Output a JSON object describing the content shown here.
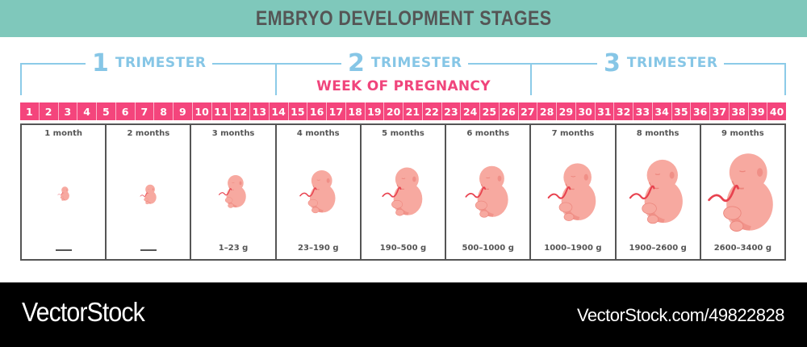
{
  "header": {
    "title": "EMBRYO DEVELOPMENT STAGES",
    "background": "#7fc8bb"
  },
  "trimesters": [
    {
      "number": "1",
      "label": "TRIMESTER",
      "weeks": "1-13"
    },
    {
      "number": "2",
      "label": "TRIMESTER",
      "weeks": "14-27"
    },
    {
      "number": "3",
      "label": "TRIMESTER",
      "weeks": "28-40"
    }
  ],
  "week_title": "WEEK OF PREGNANCY",
  "weeks": [
    "1",
    "2",
    "3",
    "4",
    "5",
    "6",
    "7",
    "8",
    "9",
    "10",
    "11",
    "12",
    "13",
    "14",
    "15",
    "16",
    "17",
    "18",
    "19",
    "20",
    "21",
    "22",
    "23",
    "24",
    "25",
    "26",
    "27",
    "28",
    "29",
    "30",
    "31",
    "32",
    "33",
    "34",
    "35",
    "36",
    "37",
    "38",
    "39",
    "40"
  ],
  "months": [
    {
      "label": "1 month",
      "weight": "",
      "scale": 0.18
    },
    {
      "label": "2 months",
      "weight": "",
      "scale": 0.25
    },
    {
      "label": "3 months",
      "weight": "1–23 g",
      "scale": 0.42
    },
    {
      "label": "4 months",
      "weight": "23–190 g",
      "scale": 0.55
    },
    {
      "label": "5 months",
      "weight": "190–500 g",
      "scale": 0.62
    },
    {
      "label": "6 months",
      "weight": "500–1000 g",
      "scale": 0.66
    },
    {
      "label": "7 months",
      "weight": "1000–1900 g",
      "scale": 0.74
    },
    {
      "label": "8 months",
      "weight": "1900–2600 g",
      "scale": 0.82
    },
    {
      "label": "9 months",
      "weight": "2600–3400 g",
      "scale": 1.0
    }
  ],
  "colors": {
    "trimester": "#86c6e6",
    "week_accent": "#f4457c",
    "embryo_skin": "#f7a9a0",
    "embryo_shadow": "#ec857c",
    "umbilical_cord": "#e8424f",
    "border": "#555555"
  },
  "footer": {
    "brand": "VectorStock",
    "image_id": "VectorStock.com/49822828"
  }
}
